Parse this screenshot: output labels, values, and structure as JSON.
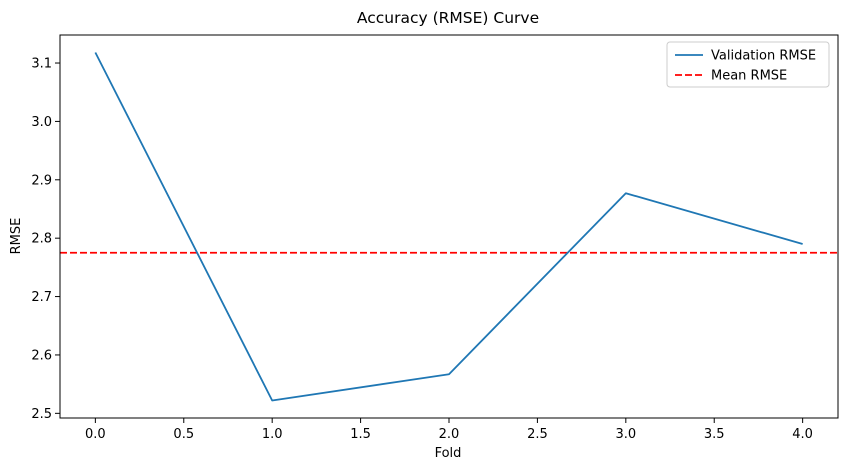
{
  "chart_data": {
    "type": "line",
    "title": "Accuracy (RMSE) Curve",
    "xlabel": "Fold",
    "ylabel": "RMSE",
    "xlim": [
      -0.2,
      4.2
    ],
    "ylim": [
      2.492,
      3.148
    ],
    "xticks": [
      0.0,
      0.5,
      1.0,
      1.5,
      2.0,
      2.5,
      3.0,
      3.5,
      4.0
    ],
    "xtick_labels": [
      "0.0",
      "0.5",
      "1.0",
      "1.5",
      "2.0",
      "2.5",
      "3.0",
      "3.5",
      "4.0"
    ],
    "yticks": [
      2.5,
      2.6,
      2.7,
      2.8,
      2.9,
      3.0,
      3.1
    ],
    "ytick_labels": [
      "2.5",
      "2.6",
      "2.7",
      "2.8",
      "2.9",
      "3.0",
      "3.1"
    ],
    "grid": false,
    "legend": "top-right",
    "series": [
      {
        "name": "Validation RMSE",
        "style": "solid",
        "color": "#1f77b4",
        "x": [
          0,
          1,
          2,
          3,
          4
        ],
        "values": [
          3.118,
          2.522,
          2.567,
          2.877,
          2.79
        ]
      }
    ],
    "hlines": [
      {
        "name": "Mean RMSE",
        "style": "dashed",
        "color": "#ff0000",
        "value": 2.775
      }
    ]
  }
}
